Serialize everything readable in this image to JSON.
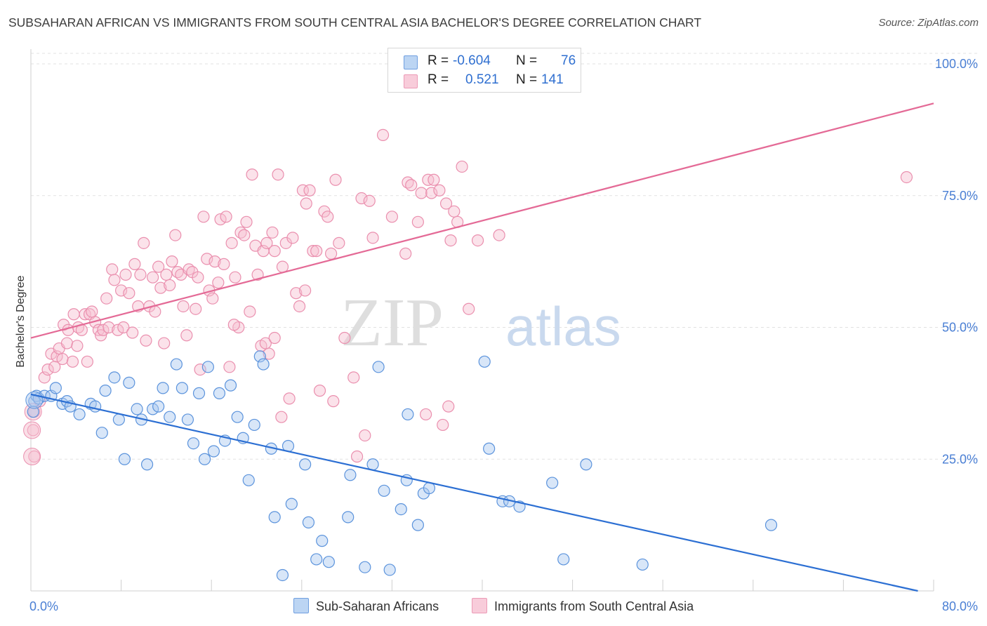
{
  "header": {
    "title": "SUBSAHARAN AFRICAN VS IMMIGRANTS FROM SOUTH CENTRAL ASIA BACHELOR'S DEGREE CORRELATION CHART",
    "source": "Source: ZipAtlas.com"
  },
  "legend": {
    "r_label": "R =",
    "n_label": "N =",
    "series1": {
      "r": "-0.604",
      "n": "76"
    },
    "series2": {
      "r": "0.521",
      "n": "141"
    }
  },
  "watermark": {
    "zip": "ZIP",
    "atlas": "atlas"
  },
  "colors": {
    "blue_fill": "#a9c8ef",
    "blue_stroke": "#5b93dc",
    "blue_line": "#2c6fd3",
    "pink_fill": "#f6bfd0",
    "pink_stroke": "#ea8fae",
    "pink_line": "#e46a96"
  },
  "chart_data": {
    "type": "scatter",
    "xlabel": "",
    "ylabel": "Bachelor's Degree",
    "xlim": [
      0,
      80
    ],
    "ylim": [
      0,
      102
    ],
    "x_ticks": [
      0,
      80
    ],
    "x_tick_labels": [
      "0.0%",
      "80.0%"
    ],
    "y_ticks": [
      25,
      50,
      75,
      100
    ],
    "y_tick_labels": [
      "25.0%",
      "50.0%",
      "75.0%",
      "100.0%"
    ],
    "grid": true,
    "legend_placement": "top-center",
    "series": [
      {
        "name": "Sub-Saharan Africans",
        "color": "#5b93dc",
        "trend": [
          [
            0,
            37.3
          ],
          [
            78.6,
            0
          ]
        ],
        "points": [
          [
            0.3,
            36
          ],
          [
            0.5,
            37
          ],
          [
            0.7,
            36.5
          ],
          [
            1.2,
            37
          ],
          [
            1.8,
            37
          ],
          [
            2.2,
            38.5
          ],
          [
            2.8,
            35.5
          ],
          [
            3.2,
            36
          ],
          [
            3.5,
            35
          ],
          [
            4.3,
            33.5
          ],
          [
            5.3,
            35.5
          ],
          [
            5.7,
            35
          ],
          [
            6.3,
            30
          ],
          [
            6.6,
            38
          ],
          [
            7.4,
            40.5
          ],
          [
            7.8,
            32.5
          ],
          [
            8.3,
            25
          ],
          [
            8.7,
            39.5
          ],
          [
            9.4,
            34.5
          ],
          [
            9.8,
            32.5
          ],
          [
            10.3,
            24
          ],
          [
            10.8,
            34.5
          ],
          [
            11.3,
            35
          ],
          [
            11.7,
            38.5
          ],
          [
            12.3,
            33
          ],
          [
            12.9,
            43
          ],
          [
            13.4,
            38.5
          ],
          [
            13.9,
            32.5
          ],
          [
            14.4,
            28
          ],
          [
            14.9,
            37.5
          ],
          [
            15.4,
            25
          ],
          [
            15.7,
            42.5
          ],
          [
            16.2,
            26.5
          ],
          [
            16.7,
            37.5
          ],
          [
            17.2,
            28.5
          ],
          [
            17.7,
            39
          ],
          [
            18.3,
            33
          ],
          [
            18.8,
            29
          ],
          [
            19.3,
            21
          ],
          [
            19.8,
            31.5
          ],
          [
            20.3,
            44.5
          ],
          [
            20.6,
            43
          ],
          [
            21.3,
            27
          ],
          [
            21.6,
            14
          ],
          [
            22.3,
            3
          ],
          [
            22.8,
            27.5
          ],
          [
            23.1,
            16.5
          ],
          [
            24.3,
            24
          ],
          [
            24.6,
            13
          ],
          [
            25.3,
            6
          ],
          [
            25.8,
            9.5
          ],
          [
            26.4,
            5.5
          ],
          [
            28.1,
            14
          ],
          [
            28.3,
            22
          ],
          [
            29.6,
            4.5
          ],
          [
            30.3,
            24
          ],
          [
            30.8,
            42.5
          ],
          [
            31.3,
            19
          ],
          [
            31.8,
            4
          ],
          [
            32.8,
            15.5
          ],
          [
            33.3,
            21
          ],
          [
            33.4,
            33.5
          ],
          [
            34.3,
            12.5
          ],
          [
            34.8,
            18.5
          ],
          [
            35.3,
            19.5
          ],
          [
            40.2,
            43.5
          ],
          [
            40.6,
            27
          ],
          [
            41.8,
            17
          ],
          [
            42.4,
            17
          ],
          [
            43.3,
            16
          ],
          [
            46.2,
            20.5
          ],
          [
            47.2,
            6
          ],
          [
            49.2,
            24
          ],
          [
            54.2,
            5
          ],
          [
            65.6,
            12.5
          ],
          [
            0.2,
            34
          ]
        ]
      },
      {
        "name": "Immigrants from South Central Asia",
        "color": "#ea8fae",
        "trend": [
          [
            0,
            48
          ],
          [
            80,
            92.5
          ]
        ],
        "points": [
          [
            0.2,
            30.5
          ],
          [
            0.3,
            25.5
          ],
          [
            0.3,
            34
          ],
          [
            0.8,
            36
          ],
          [
            1.2,
            40.5
          ],
          [
            1.5,
            42
          ],
          [
            1.8,
            45
          ],
          [
            2.1,
            42.5
          ],
          [
            2.3,
            44.5
          ],
          [
            2.5,
            46
          ],
          [
            2.8,
            44
          ],
          [
            2.9,
            50.5
          ],
          [
            3.2,
            47
          ],
          [
            3.3,
            49.5
          ],
          [
            3.7,
            43.5
          ],
          [
            3.8,
            52.5
          ],
          [
            4.1,
            46.5
          ],
          [
            4.2,
            50
          ],
          [
            4.5,
            49.5
          ],
          [
            4.8,
            52.5
          ],
          [
            5.0,
            43.5
          ],
          [
            5.2,
            52.5
          ],
          [
            5.4,
            53
          ],
          [
            5.7,
            51
          ],
          [
            6.0,
            49.5
          ],
          [
            6.2,
            48.5
          ],
          [
            6.4,
            49.5
          ],
          [
            6.7,
            55.5
          ],
          [
            6.9,
            50
          ],
          [
            7.2,
            61
          ],
          [
            7.4,
            59
          ],
          [
            7.7,
            49.5
          ],
          [
            8.0,
            57
          ],
          [
            8.2,
            50
          ],
          [
            8.4,
            60
          ],
          [
            8.7,
            56.5
          ],
          [
            9.0,
            49
          ],
          [
            9.2,
            62
          ],
          [
            9.5,
            54
          ],
          [
            9.7,
            60
          ],
          [
            10.0,
            66
          ],
          [
            10.2,
            47.5
          ],
          [
            10.5,
            54
          ],
          [
            10.8,
            59.5
          ],
          [
            11.0,
            53
          ],
          [
            11.3,
            61.5
          ],
          [
            11.5,
            57.5
          ],
          [
            11.8,
            47
          ],
          [
            12.0,
            60
          ],
          [
            12.3,
            58
          ],
          [
            12.5,
            62.5
          ],
          [
            12.8,
            67.5
          ],
          [
            13.0,
            60.5
          ],
          [
            13.3,
            60
          ],
          [
            13.5,
            54
          ],
          [
            13.8,
            48.5
          ],
          [
            14.0,
            61
          ],
          [
            14.3,
            60.5
          ],
          [
            14.6,
            53.5
          ],
          [
            14.8,
            59.5
          ],
          [
            15.0,
            42
          ],
          [
            15.3,
            71
          ],
          [
            15.6,
            63
          ],
          [
            15.8,
            57
          ],
          [
            16.1,
            55.5
          ],
          [
            16.3,
            62.5
          ],
          [
            16.6,
            58.5
          ],
          [
            16.8,
            70.5
          ],
          [
            17.1,
            62
          ],
          [
            17.3,
            71
          ],
          [
            17.6,
            42.5
          ],
          [
            17.8,
            66
          ],
          [
            18.1,
            59.5
          ],
          [
            18.4,
            50
          ],
          [
            18.6,
            68
          ],
          [
            18.9,
            67.5
          ],
          [
            19.1,
            70
          ],
          [
            19.4,
            53
          ],
          [
            19.6,
            79
          ],
          [
            19.9,
            65.5
          ],
          [
            20.1,
            60
          ],
          [
            20.4,
            46.5
          ],
          [
            20.6,
            64.5
          ],
          [
            20.9,
            66
          ],
          [
            21.1,
            45
          ],
          [
            21.4,
            68
          ],
          [
            21.6,
            64.5
          ],
          [
            21.9,
            79
          ],
          [
            22.3,
            61.5
          ],
          [
            22.6,
            66
          ],
          [
            22.9,
            36.5
          ],
          [
            23.2,
            67
          ],
          [
            23.5,
            56.5
          ],
          [
            23.8,
            54
          ],
          [
            24.1,
            76
          ],
          [
            24.4,
            73.5
          ],
          [
            24.7,
            76
          ],
          [
            25.0,
            64.5
          ],
          [
            25.3,
            64.5
          ],
          [
            25.6,
            38
          ],
          [
            26.0,
            72
          ],
          [
            26.3,
            71
          ],
          [
            26.6,
            64
          ],
          [
            27.0,
            78
          ],
          [
            27.3,
            66
          ],
          [
            27.8,
            48
          ],
          [
            28.6,
            40.5
          ],
          [
            28.9,
            25.5
          ],
          [
            29.3,
            74.5
          ],
          [
            29.6,
            29.5
          ],
          [
            30.0,
            74
          ],
          [
            30.3,
            67
          ],
          [
            32.0,
            71
          ],
          [
            33.2,
            64
          ],
          [
            33.4,
            77.5
          ],
          [
            33.7,
            77
          ],
          [
            34.3,
            70
          ],
          [
            34.6,
            75.5
          ],
          [
            35.2,
            78
          ],
          [
            35.5,
            75.5
          ],
          [
            35.7,
            78
          ],
          [
            36.2,
            76
          ],
          [
            36.5,
            31.5
          ],
          [
            36.8,
            73.5
          ],
          [
            37.2,
            66.5
          ],
          [
            37.5,
            72
          ],
          [
            37.8,
            70
          ],
          [
            38.2,
            80.5
          ],
          [
            38.8,
            53.5
          ],
          [
            39.6,
            66.5
          ],
          [
            41.5,
            67.5
          ],
          [
            77.6,
            78.5
          ],
          [
            31.2,
            86.5
          ],
          [
            24.3,
            57
          ],
          [
            20.8,
            47
          ],
          [
            21.6,
            48
          ],
          [
            18.0,
            50.5
          ],
          [
            22.2,
            33
          ],
          [
            37.0,
            35
          ],
          [
            35.0,
            33.5
          ],
          [
            26.8,
            36
          ]
        ]
      }
    ]
  },
  "bottom_legend": {
    "series1_label": "Sub-Saharan Africans",
    "series2_label": "Immigrants from South Central Asia"
  }
}
